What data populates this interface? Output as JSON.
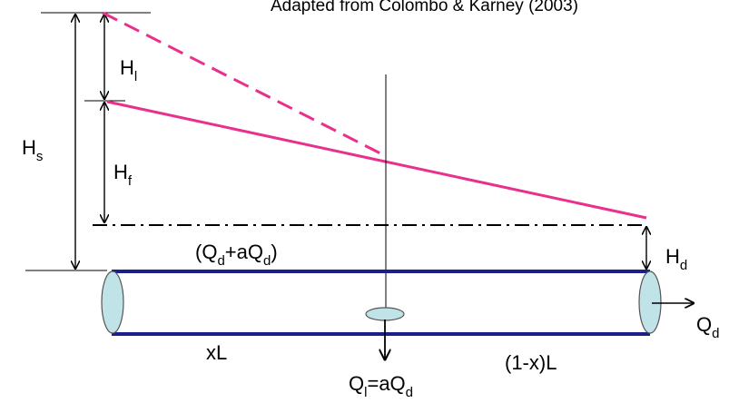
{
  "caption": "Adapted from  Colombo & Karney (2003)",
  "labels": {
    "hs": {
      "base": "H",
      "sub": "s"
    },
    "hl": {
      "base": "H",
      "sub": "l"
    },
    "hf": {
      "base": "H",
      "sub": "f"
    },
    "hd": {
      "base": "H",
      "sub": "d"
    },
    "flow_upstream": {
      "p1": "(Q",
      "s1": "d",
      "p2": "+aQ",
      "s2": "d",
      "p3": ")"
    },
    "flow_out": {
      "base": "Q",
      "sub": "d"
    },
    "leak": {
      "p1": "Q",
      "s1": "l",
      "p2": "=aQ",
      "s2": "d"
    },
    "upstream_length": "xL",
    "downstream_length": "(1-x)L"
  },
  "colors": {
    "hgl": "#e8308c",
    "pipe": "#1a1f8c",
    "pipe_end": "#bfe3e6",
    "ink": "#000000"
  }
}
